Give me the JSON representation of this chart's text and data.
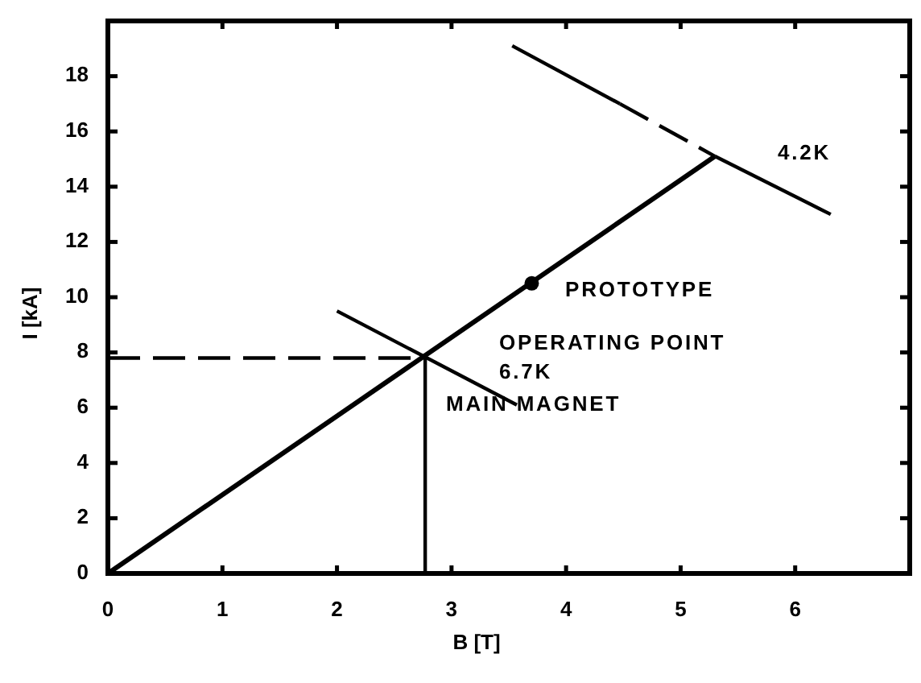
{
  "chart_data": {
    "type": "line",
    "xlabel": "B [T]",
    "ylabel": "I [kA]",
    "xlim": [
      0,
      7
    ],
    "ylim": [
      0,
      20
    ],
    "xticks": [
      0,
      1,
      2,
      3,
      4,
      5,
      6
    ],
    "yticks": [
      0,
      2,
      4,
      6,
      8,
      10,
      12,
      14,
      16,
      18
    ],
    "series": [
      {
        "color": "#000000",
        "x": [
          0,
          5.3
        ],
        "values": [
          0,
          15.1
        ]
      },
      {
        "color": "#000000",
        "x": [
          3.53,
          4.47
        ],
        "values": [
          19.1,
          17.0
        ]
      },
      {
        "color": "#000000",
        "x": [
          4.47,
          5.3
        ],
        "values": [
          17.0,
          15.1
        ],
        "line_style": "dashed"
      },
      {
        "color": "#000000",
        "x": [
          5.3,
          6.31
        ],
        "values": [
          15.1,
          13.0
        ]
      },
      {
        "color": "#000000",
        "x": [
          2.0,
          3.57
        ],
        "values": [
          9.5,
          6.1
        ]
      },
      {
        "color": "#000000",
        "x": [
          0,
          2.77
        ],
        "values": [
          7.8,
          7.8
        ],
        "line_style": "dashed"
      },
      {
        "color": "#000000",
        "x": [
          2.77,
          2.77
        ],
        "values": [
          0,
          7.8
        ]
      },
      {
        "type": "scatter",
        "color": "#000000",
        "x": [
          3.7
        ],
        "values": [
          10.5
        ],
        "marker": "circle"
      }
    ],
    "annotations": [
      "4.2K",
      "PROTOTYPE",
      "OPERATING POINT",
      "6.7K",
      "MAIN MAGNET"
    ]
  }
}
